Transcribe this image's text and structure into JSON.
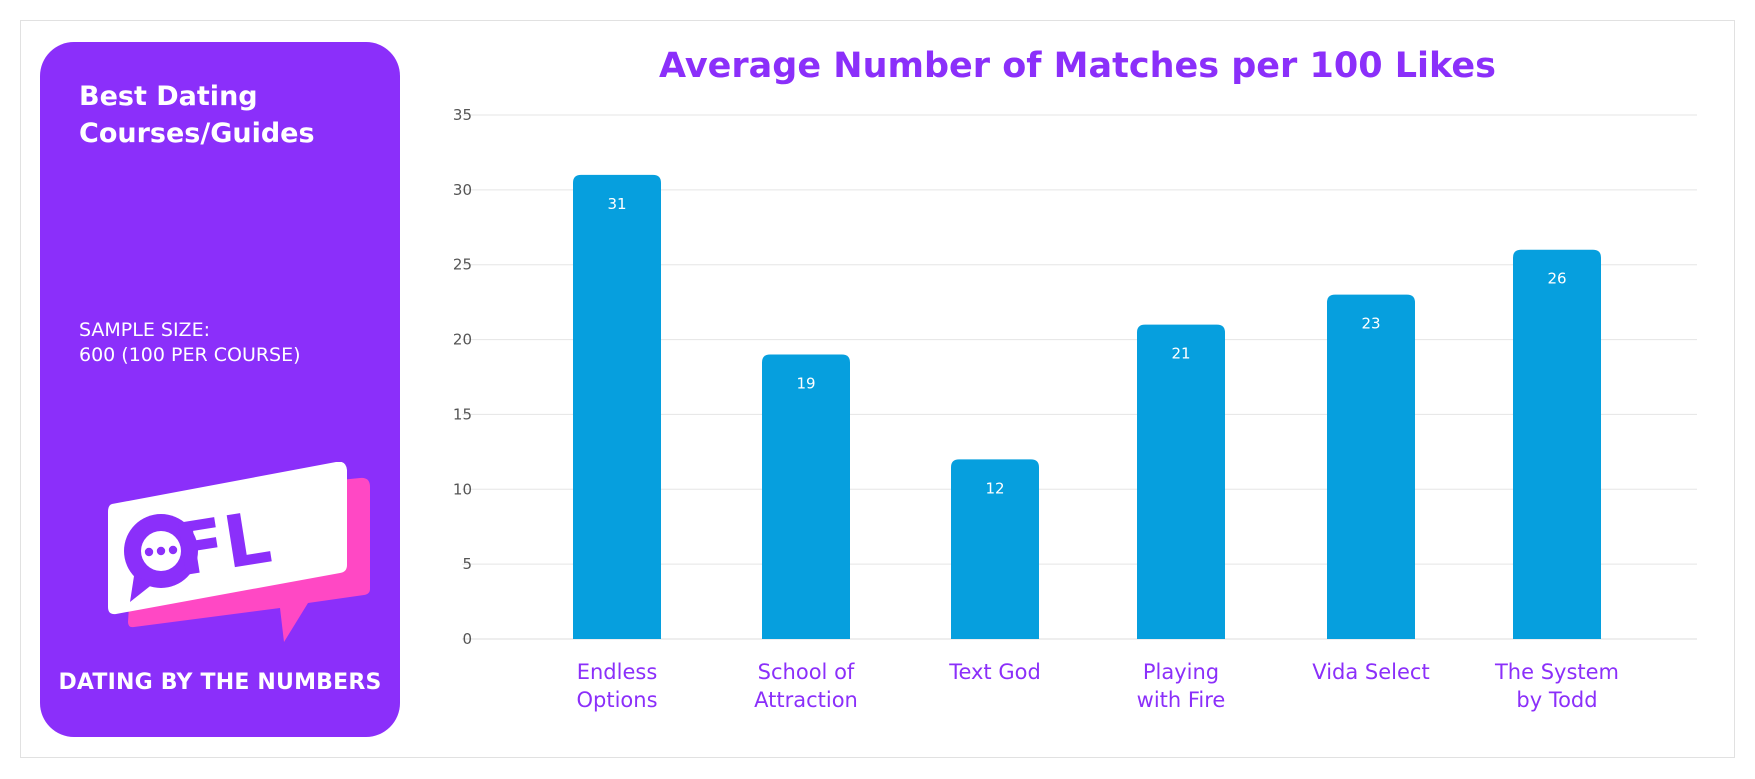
{
  "sidebar": {
    "title_line1": "Best Dating",
    "title_line2": "Courses/Guides",
    "sample_line1": "SAMPLE SIZE:",
    "sample_line2": "600 (100 PER COURSE)",
    "logo_text": "OFL",
    "tagline": "DATING BY THE NUMBERS"
  },
  "colors": {
    "brand_purple": "#8b2ffa",
    "bar_blue": "#069fde",
    "logo_pink": "#ff48c4",
    "grid": "#e5e5e5"
  },
  "chart_data": {
    "type": "bar",
    "title": "Average Number of Matches per 100 Likes",
    "categories": [
      [
        "Endless",
        "Options"
      ],
      [
        "School of",
        "Attraction"
      ],
      [
        "Text God"
      ],
      [
        "Playing",
        "with Fire"
      ],
      [
        "Vida Select"
      ],
      [
        "The System",
        "by Todd"
      ]
    ],
    "values": [
      31,
      19,
      12,
      21,
      23,
      26
    ],
    "ylim": [
      0,
      35
    ],
    "yticks": [
      0,
      5,
      10,
      15,
      20,
      25,
      30,
      35
    ],
    "grid": true,
    "data_labels": true,
    "xlabel": "",
    "ylabel": ""
  }
}
